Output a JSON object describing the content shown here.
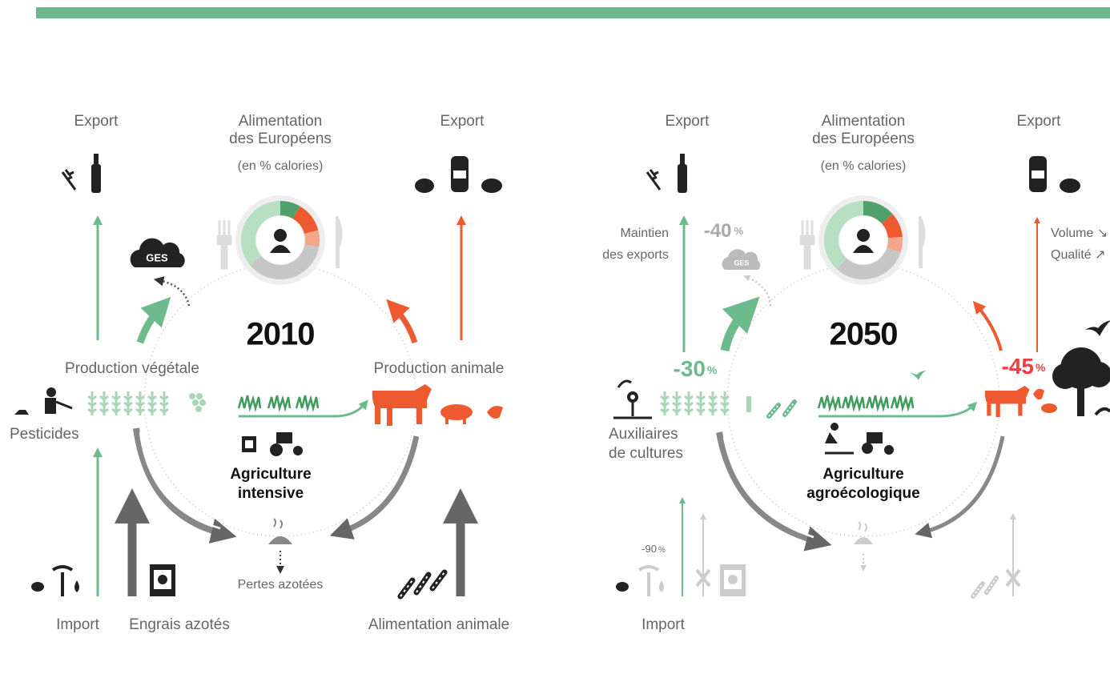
{
  "panels": [
    {
      "export_left": "Export",
      "diet_title": [
        "Alimentation",
        "des Européens"
      ],
      "diet_unit": "(en % calories)",
      "export_right": "Export",
      "ges": "GES",
      "year": "2010",
      "plant_production": "Production végétale",
      "animal_production": "Production animale",
      "pesticides": "Pesticides",
      "agriculture": [
        "Agriculture",
        "intensive"
      ],
      "nitrogen_loss": "Pertes azotées",
      "import": "Import",
      "fertilizers": "Engrais azotés",
      "animal_feed": "Alimentation animale"
    },
    {
      "export_left": "Export",
      "diet_title": [
        "Alimentation",
        "des Européens"
      ],
      "diet_unit": "(en % calories)",
      "export_right": "Export",
      "export_note": [
        "Maintien",
        "des exports"
      ],
      "ges_change": {
        "value": "-40",
        "unit": "%"
      },
      "ges": "GES",
      "year": "2050",
      "plant_change": {
        "value": "-30",
        "unit": "%"
      },
      "animal_change": {
        "value": "-45",
        "unit": "%"
      },
      "animal_export_note": [
        "Volume ↘",
        "Qualité ↗"
      ],
      "auxiliaries": [
        "Auxiliaires",
        "de cultures"
      ],
      "agriculture": [
        "Agriculture",
        "agroécologique"
      ],
      "import_change": {
        "value": "-90",
        "unit": "%"
      },
      "import": "Import"
    }
  ]
}
